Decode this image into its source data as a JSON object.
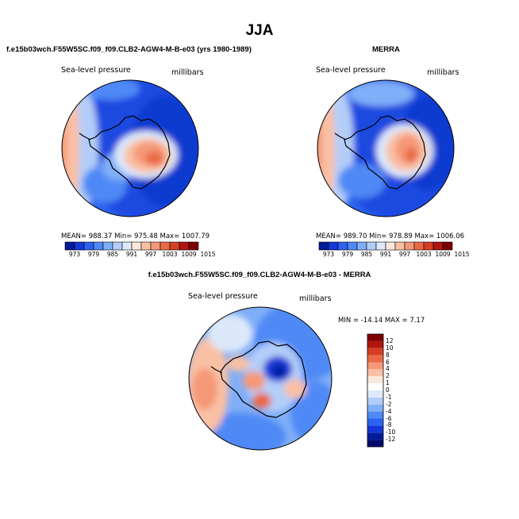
{
  "figure": {
    "title": "JJA",
    "colors": {
      "border": "#000000",
      "coast": "#000000"
    }
  },
  "chart_data": [
    {
      "type": "heatmap",
      "panel": "case",
      "header": "f.e15b03wch.F55W5SC.f09_f09.CLB2-AGW4-M-B-e03 (yrs 1980-1989)",
      "field_label": "Sea-level pressure",
      "units_label": "millibars",
      "stats": {
        "mean": "988.37",
        "min": "975.48",
        "max": "1007.79"
      },
      "stats_text": "MEAN= 988.37   Min= 975.48   Max= 1007.79",
      "colorbar": {
        "tick_labels": [
          "973",
          "979",
          "985",
          "991",
          "997",
          "1003",
          "1009",
          "1015"
        ],
        "colors": [
          "#001b9b",
          "#1437d6",
          "#2c63ee",
          "#4f89f5",
          "#80aef8",
          "#b3cdf8",
          "#dde9fb",
          "#fbe8dc",
          "#f9c0a4",
          "#f59877",
          "#ea6a46",
          "#d53e24",
          "#b0160d",
          "#7d0000"
        ]
      }
    },
    {
      "type": "heatmap",
      "panel": "obs",
      "header": "MERRA",
      "field_label": "Sea-level pressure",
      "units_label": "millibars",
      "stats": {
        "mean": "989.70",
        "min": "978.89",
        "max": "1006.06"
      },
      "stats_text": "MEAN= 989.70   Min= 978.89   Max= 1006.06",
      "colorbar": {
        "tick_labels": [
          "973",
          "979",
          "985",
          "991",
          "997",
          "1003",
          "1009",
          "1015"
        ],
        "colors": [
          "#001b9b",
          "#1437d6",
          "#2c63ee",
          "#4f89f5",
          "#80aef8",
          "#b3cdf8",
          "#dde9fb",
          "#fbe8dc",
          "#f9c0a4",
          "#f59877",
          "#ea6a46",
          "#d53e24",
          "#b0160d",
          "#7d0000"
        ]
      }
    },
    {
      "type": "heatmap",
      "panel": "diff",
      "header": "f.e15b03wch.F55W5SC.f09_f09.CLB2-AGW4-M-B-e03 - MERRA",
      "field_label": "Sea-level pressure",
      "units_label": "millibars",
      "stats": {
        "min": "-14.14",
        "max": "7.17"
      },
      "stats_text": "MIN = -14.14  MAX =   7.17",
      "colorbar": {
        "orientation": "vertical",
        "tick_labels": [
          "12",
          "10",
          "8",
          "6",
          "4",
          "2",
          "1",
          "0",
          "-1",
          "-2",
          "-4",
          "-6",
          "-8",
          "-10",
          "-12"
        ],
        "colors": [
          "#7d0000",
          "#b0160d",
          "#d53e24",
          "#ea6a46",
          "#f59877",
          "#f9c0a4",
          "#fbe8dc",
          "#ffffff",
          "#dde9fb",
          "#b3cdf8",
          "#80aef8",
          "#4f89f5",
          "#2c63ee",
          "#1437d6",
          "#001b9b",
          "#000a70"
        ]
      }
    }
  ]
}
